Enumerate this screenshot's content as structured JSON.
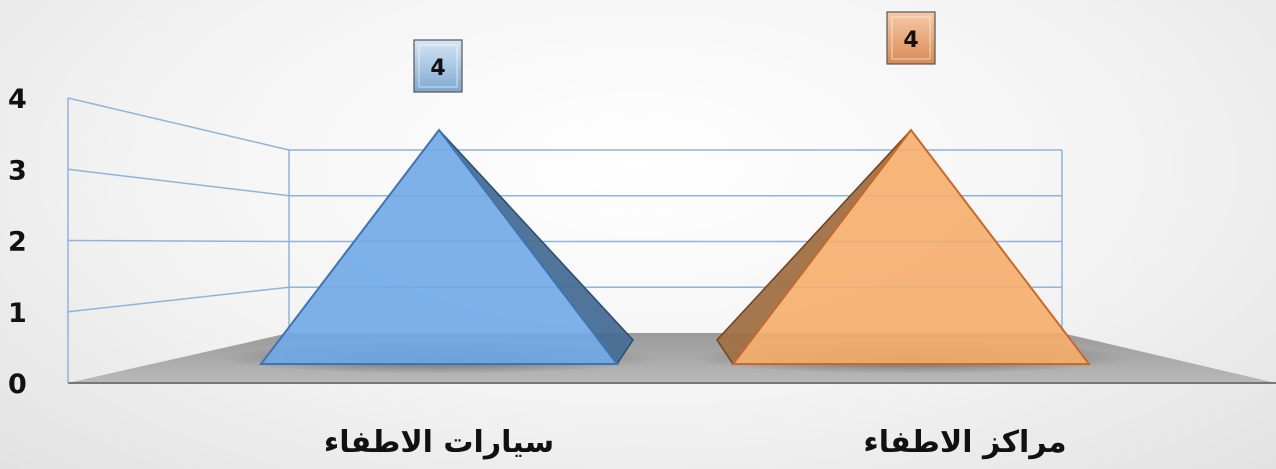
{
  "chart_data": {
    "type": "bar",
    "bar_shape": "pyramid-3d",
    "categories": [
      "سيارات الاطفاء",
      "مراكز الاطفاء"
    ],
    "series": [
      {
        "values": [
          4,
          4
        ]
      }
    ],
    "bar_colors": [
      "#6fa8e6",
      "#f5ad6a"
    ],
    "label_colors": [
      "#9cc0e4",
      "#f0a777"
    ],
    "ylim": [
      0,
      4
    ],
    "yticks": [
      0,
      1,
      2,
      3,
      4
    ],
    "grid": true,
    "legend": "none"
  }
}
